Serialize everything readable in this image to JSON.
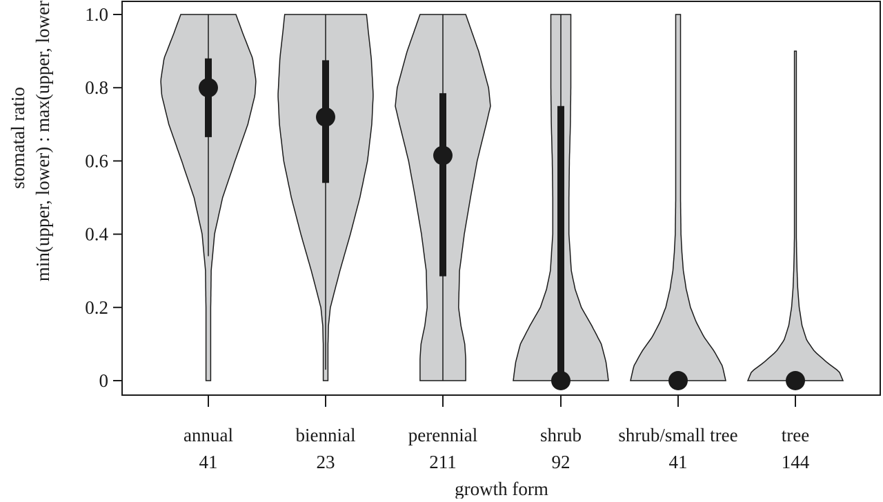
{
  "chart_data": {
    "type": "violin",
    "xlabel": "growth form",
    "ylabel_lines": [
      "stomatal ratio",
      "min(upper, lower) : max(upper, lower)"
    ],
    "ylim": [
      0,
      1
    ],
    "yticks": [
      {
        "value": 0,
        "label": "0"
      },
      {
        "value": 0.2,
        "label": "0.2"
      },
      {
        "value": 0.4,
        "label": "0.4"
      },
      {
        "value": 0.6,
        "label": "0.6"
      },
      {
        "value": 0.8,
        "label": "0.8"
      },
      {
        "value": 1.0,
        "label": "1.0"
      }
    ],
    "colors": {
      "violin_fill": "#cfd0d1",
      "violin_stroke": "#1a1a1a",
      "marker": "#1a1a1a"
    },
    "groups": [
      {
        "category": "annual",
        "n": "41",
        "min": 0,
        "max": 1.0,
        "q1": 0.665,
        "q3": 0.88,
        "median": 0.8,
        "whisker_low": 0.34,
        "whisker_high": 1.0,
        "density": [
          [
            0,
            0.05
          ],
          [
            0.1,
            0.05
          ],
          [
            0.2,
            0.05
          ],
          [
            0.3,
            0.06
          ],
          [
            0.4,
            0.13
          ],
          [
            0.5,
            0.3
          ],
          [
            0.6,
            0.56
          ],
          [
            0.7,
            0.83
          ],
          [
            0.78,
            0.98
          ],
          [
            0.82,
            1.0
          ],
          [
            0.88,
            0.93
          ],
          [
            0.95,
            0.72
          ],
          [
            1.0,
            0.58
          ]
        ]
      },
      {
        "category": "biennial",
        "n": "23",
        "min": 0,
        "max": 1.0,
        "q1": 0.54,
        "q3": 0.875,
        "median": 0.72,
        "whisker_low": 0.03,
        "whisker_high": 1.0,
        "density": [
          [
            0,
            0.05
          ],
          [
            0.1,
            0.05
          ],
          [
            0.15,
            0.06
          ],
          [
            0.2,
            0.1
          ],
          [
            0.3,
            0.3
          ],
          [
            0.4,
            0.52
          ],
          [
            0.5,
            0.72
          ],
          [
            0.6,
            0.88
          ],
          [
            0.7,
            0.97
          ],
          [
            0.78,
            1.0
          ],
          [
            0.88,
            0.96
          ],
          [
            0.95,
            0.9
          ],
          [
            1.0,
            0.86
          ]
        ]
      },
      {
        "category": "perennial",
        "n": "211",
        "min": 0,
        "max": 1.0,
        "q1": 0.285,
        "q3": 0.785,
        "median": 0.615,
        "whisker_low": 0.0,
        "whisker_high": 1.0,
        "density": [
          [
            0,
            0.48
          ],
          [
            0.06,
            0.48
          ],
          [
            0.1,
            0.46
          ],
          [
            0.15,
            0.38
          ],
          [
            0.2,
            0.33
          ],
          [
            0.3,
            0.35
          ],
          [
            0.4,
            0.45
          ],
          [
            0.5,
            0.58
          ],
          [
            0.6,
            0.72
          ],
          [
            0.7,
            0.91
          ],
          [
            0.75,
            1.0
          ],
          [
            0.8,
            0.96
          ],
          [
            0.9,
            0.75
          ],
          [
            1.0,
            0.48
          ]
        ]
      },
      {
        "category": "shrub",
        "n": "92",
        "min": 0,
        "max": 1.0,
        "q1": 0.0,
        "q3": 0.75,
        "median": 0.0,
        "whisker_low": 0.0,
        "whisker_high": 1.0,
        "density": [
          [
            0,
            1.0
          ],
          [
            0.05,
            0.95
          ],
          [
            0.1,
            0.85
          ],
          [
            0.15,
            0.65
          ],
          [
            0.2,
            0.43
          ],
          [
            0.25,
            0.3
          ],
          [
            0.3,
            0.22
          ],
          [
            0.4,
            0.17
          ],
          [
            0.5,
            0.17
          ],
          [
            0.6,
            0.18
          ],
          [
            0.7,
            0.2
          ],
          [
            0.8,
            0.21
          ],
          [
            0.9,
            0.21
          ],
          [
            1.0,
            0.21
          ]
        ]
      },
      {
        "category": "shrub/small tree",
        "n": "41",
        "min": 0,
        "max": 1.0,
        "q1": 0.0,
        "q3": 0.0,
        "median": 0.0,
        "whisker_low": 0.0,
        "whisker_high": 0.0,
        "density": [
          [
            0,
            1.0
          ],
          [
            0.04,
            0.93
          ],
          [
            0.08,
            0.76
          ],
          [
            0.12,
            0.54
          ],
          [
            0.16,
            0.38
          ],
          [
            0.2,
            0.26
          ],
          [
            0.25,
            0.17
          ],
          [
            0.3,
            0.11
          ],
          [
            0.35,
            0.08
          ],
          [
            0.4,
            0.06
          ],
          [
            0.5,
            0.05
          ],
          [
            0.6,
            0.05
          ],
          [
            0.7,
            0.05
          ],
          [
            0.8,
            0.05
          ],
          [
            0.9,
            0.05
          ],
          [
            1.0,
            0.05
          ]
        ]
      },
      {
        "category": "tree",
        "n": "144",
        "min": 0,
        "max": 0.9,
        "q1": 0.0,
        "q3": 0.0,
        "median": 0.0,
        "whisker_low": 0.0,
        "whisker_high": 0.0,
        "density": [
          [
            0,
            1.0
          ],
          [
            0.025,
            0.92
          ],
          [
            0.05,
            0.66
          ],
          [
            0.08,
            0.4
          ],
          [
            0.11,
            0.24
          ],
          [
            0.15,
            0.14
          ],
          [
            0.2,
            0.08
          ],
          [
            0.25,
            0.05
          ],
          [
            0.3,
            0.035
          ],
          [
            0.35,
            0.025
          ],
          [
            0.4,
            0.02
          ],
          [
            0.6,
            0.02
          ],
          [
            0.9,
            0.02
          ]
        ]
      }
    ]
  }
}
